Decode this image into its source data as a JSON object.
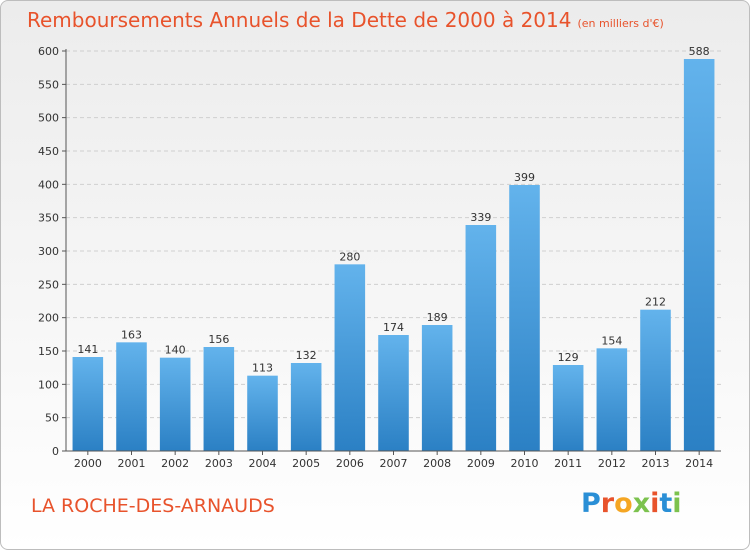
{
  "header": {
    "title": "Remboursements Annuels de la Dette de 2000 à 2014",
    "unit": "(en milliers d'€)"
  },
  "footer": {
    "commune": "LA ROCHE-DES-ARNAUDS",
    "logo_text": "Proxiti",
    "logo_colors": [
      "#2a8fd6",
      "#e8532c",
      "#f5a623",
      "#7cc24e",
      "#e8532c",
      "#2a8fd6",
      "#7cc24e"
    ]
  },
  "colors": {
    "title": "#e8532c",
    "bar_light": "#63b3ec",
    "bar_dark": "#2b80c4",
    "grid": "#cfcfcf"
  },
  "chart_data": {
    "type": "bar",
    "title": "Remboursements Annuels de la Dette de 2000 à 2014",
    "subtitle": "(en milliers d'€)",
    "categories": [
      "2000",
      "2001",
      "2002",
      "2003",
      "2004",
      "2005",
      "2006",
      "2007",
      "2008",
      "2009",
      "2010",
      "2011",
      "2012",
      "2013",
      "2014"
    ],
    "values": [
      141,
      163,
      140,
      156,
      113,
      132,
      280,
      174,
      189,
      339,
      399,
      129,
      154,
      212,
      588
    ],
    "ylim": [
      0,
      600
    ],
    "yticks": [
      0,
      50,
      100,
      150,
      200,
      250,
      300,
      350,
      400,
      450,
      500,
      550,
      600
    ],
    "grid": true,
    "xlabel": "",
    "ylabel": ""
  }
}
